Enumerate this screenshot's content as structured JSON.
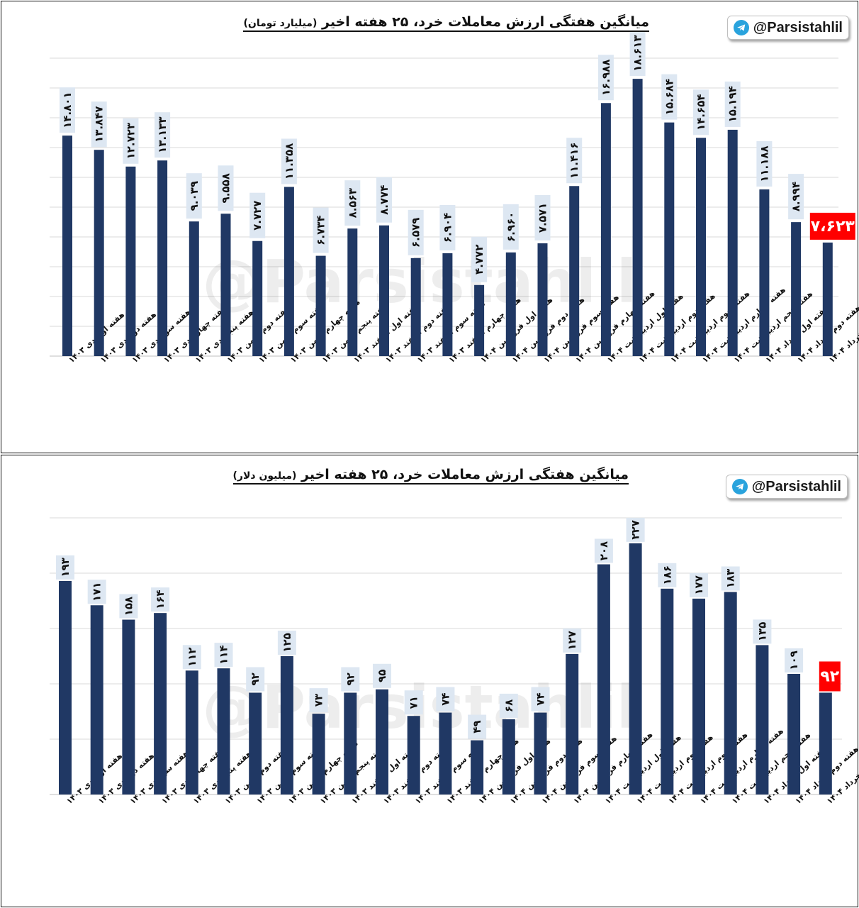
{
  "brand": {
    "handle": "@Parsistahlil",
    "icon": "telegram-icon",
    "color": "#29a3dd"
  },
  "watermark": "@Parsistahlil",
  "colors": {
    "bar": "#203864",
    "label_bg": "#dde7f2",
    "highlight": "#ff0000",
    "grid": "#d9d9d9"
  },
  "chart_data": [
    {
      "type": "bar",
      "title": "میانگین هفتگی ارزش معاملات خرد، ۲۵ هفته اخیر",
      "subtitle": "(میلیارد تومان)",
      "categories": [
        "هفته اول دی ۱۴۰۳",
        "هفته دوم دی ۱۴۰۳",
        "هفته سوم دی ۱۴۰۳",
        "هفته چهارم دی ۱۴۰۳",
        "هفته پنجم دی ۱۴۰۳",
        "هفته دوم بهمن ۱۴۰۳",
        "هفته سوم بهمن ۱۴۰۳",
        "هفته چهارم بهمن ۱۴۰۳",
        "هفته پنجم بهمن ۱۴۰۳",
        "هفته اول اسفند ۱۴۰۳",
        "هفته دوم اسفند ۱۴۰۳",
        "هفته سوم اسفند ۱۴۰۳",
        "هفته چهارم اسفند ۱۴۰۳",
        "هفته اول فروردین ۱۴۰۴",
        "هفته دوم فروردین ۱۴۰۴",
        "هفته سوم فروردین ۱۴۰۴",
        "هفته چهارم فروردین ۱۴۰۴",
        "هفته اول اردیبهشت ۱۴۰۴",
        "هفته دوم اردیبهشت ۱۴۰۴",
        "هفته سوم اردیبهشت ۱۴۰۴",
        "هفته چهارم اردیبهشت ۱۴۰۴",
        "هفته پنجم اردیبهشت ۱۴۰۴",
        "هفته اول خرداد ۱۴۰۴",
        "هفته دوم خرداد ۱۴۰۴",
        "هفته سوم خرداد ۱۴۰۴"
      ],
      "values": [
        14801,
        13847,
        12723,
        13133,
        9039,
        9558,
        7727,
        11358,
        6734,
        8563,
        8774,
        6579,
        6904,
        4772,
        6960,
        7571,
        11416,
        16988,
        18613,
        15684,
        14654,
        15194,
        11188,
        8994,
        7623
      ],
      "value_labels": [
        "۱۴.۸۰۱",
        "۱۳.۸۴۷",
        "۱۲.۷۲۳",
        "۱۳.۱۳۳",
        "۹.۰۳۹",
        "۹.۵۵۸",
        "۷.۷۲۷",
        "۱۱.۳۵۸",
        "۶.۷۳۴",
        "۸.۵۶۳",
        "۸.۷۷۴",
        "۶.۵۷۹",
        "۶.۹۰۴",
        "۴.۷۷۲",
        "۶.۹۶۰",
        "۷.۵۷۱",
        "۱۱.۴۱۶",
        "۱۶.۹۸۸",
        "۱۸.۶۱۳",
        "۱۵.۶۸۴",
        "۱۴.۶۵۴",
        "۱۵.۱۹۴",
        "۱۱.۱۸۸",
        "۸.۹۹۴",
        "۷،۶۲۳"
      ],
      "ylim": [
        0,
        20000
      ],
      "grid": true,
      "highlight_index": 24
    },
    {
      "type": "bar",
      "title": "میانگین هفتگی ارزش معاملات خرد، ۲۵ هفته اخیر",
      "subtitle": "(میلیون دلار)",
      "categories": [
        "هفته اول دی ۱۴۰۳",
        "هفته دوم دی ۱۴۰۳",
        "هفته سوم دی ۱۴۰۳",
        "هفته چهارم دی ۱۴۰۳",
        "هفته پنجم دی ۱۴۰۳",
        "هفته دوم بهمن ۱۴۰۳",
        "هفته سوم بهمن ۱۴۰۳",
        "هفته چهارم بهمن ۱۴۰۳",
        "هفته پنجم بهمن ۱۴۰۳",
        "هفته اول اسفند ۱۴۰۳",
        "هفته دوم اسفند ۱۴۰۳",
        "هفته سوم اسفند ۱۴۰۳",
        "هفته چهارم اسفند ۱۴۰۳",
        "هفته اول فروردین ۱۴۰۴",
        "هفته دوم فروردین ۱۴۰۴",
        "هفته سوم فروردین ۱۴۰۴",
        "هفته چهارم فروردین ۱۴۰۴",
        "هفته اول اردیبهشت ۱۴۰۴",
        "هفته دوم اردیبهشت ۱۴۰۴",
        "هفته سوم اردیبهشت ۱۴۰۴",
        "هفته چهارم اردیبهشت ۱۴۰۴",
        "هفته پنجم اردیبهشت ۱۴۰۴",
        "هفته اول خرداد ۱۴۰۴",
        "هفته دوم خرداد ۱۴۰۴",
        "هفته سوم خرداد ۱۴۰۴"
      ],
      "values": [
        193,
        171,
        158,
        164,
        112,
        114,
        92,
        125,
        73,
        92,
        95,
        71,
        74,
        49,
        68,
        74,
        127,
        208,
        227,
        186,
        177,
        183,
        135,
        109,
        92
      ],
      "value_labels": [
        "۱۹۳",
        "۱۷۱",
        "۱۵۸",
        "۱۶۴",
        "۱۱۲",
        "۱۱۴",
        "۹۲",
        "۱۲۵",
        "۷۳",
        "۹۲",
        "۹۵",
        "۷۱",
        "۷۴",
        "۴۹",
        "۶۸",
        "۷۴",
        "۱۲۷",
        "۲۰۸",
        "۲۲۷",
        "۱۸۶",
        "۱۷۷",
        "۱۸۳",
        "۱۳۵",
        "۱۰۹",
        "۹۲"
      ],
      "ylim": [
        0,
        250
      ],
      "grid": true,
      "highlight_index": 24
    }
  ]
}
